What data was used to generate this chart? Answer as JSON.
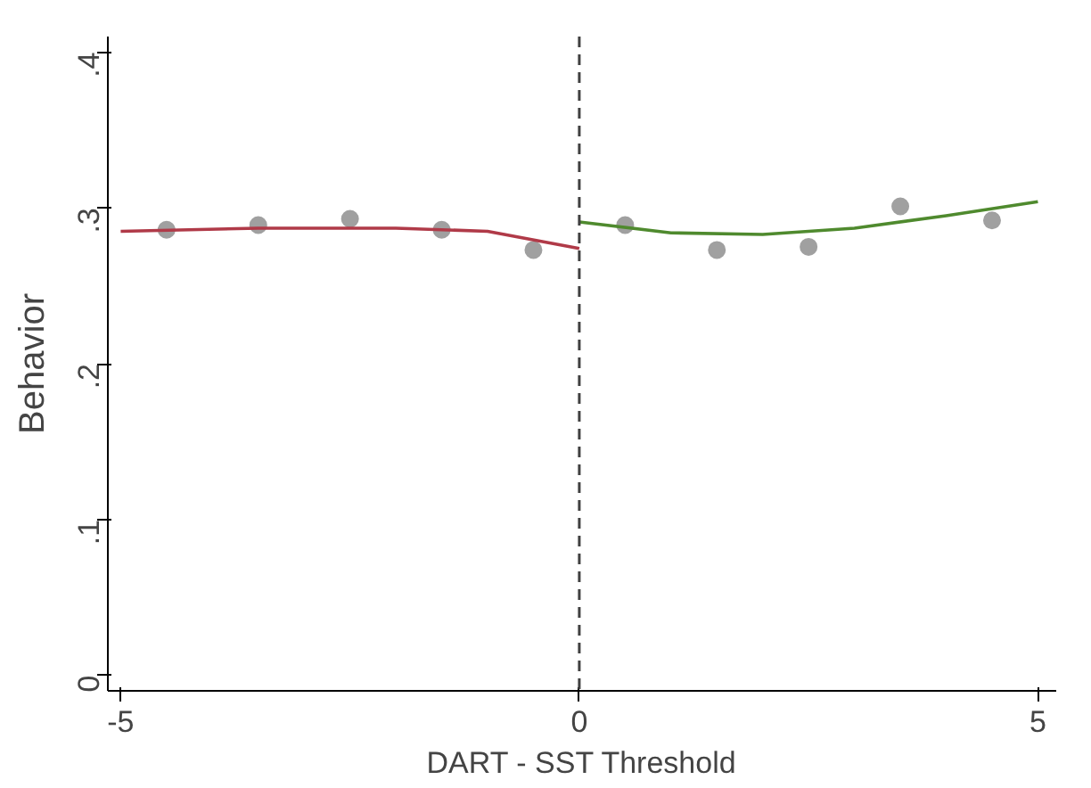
{
  "chart_data": {
    "type": "scatter",
    "xlabel": "DART - SST Threshold",
    "ylabel": "Behavior",
    "xlim": [
      -5.14,
      5.2
    ],
    "xticks": [
      -5,
      0,
      5
    ],
    "ylim": [
      -0.01,
      0.41
    ],
    "yticks": [
      {
        "value": 0,
        "label": "0"
      },
      {
        "value": 0.1,
        "label": ".1"
      },
      {
        "value": 0.2,
        "label": ".2"
      },
      {
        "value": 0.3,
        "label": ".3"
      },
      {
        "value": 0.4,
        "label": ".4"
      }
    ],
    "grid": false,
    "ref_lines": [
      {
        "axis": "x",
        "value": 0,
        "line_style": "dashed",
        "color": "#404040"
      }
    ],
    "series": [
      {
        "marker": "circle",
        "color": "#a0a0a0",
        "x": [
          -4.5,
          -3.5,
          -2.5,
          -1.5,
          -0.5,
          0.5,
          1.5,
          2.5,
          3.5,
          4.5
        ],
        "values": [
          0.286,
          0.289,
          0.293,
          0.286,
          0.273,
          0.289,
          0.273,
          0.275,
          0.301,
          0.292
        ]
      },
      {
        "type": "line",
        "color": "#b03a48",
        "x": [
          -5,
          -3.5,
          -2,
          -1,
          0
        ],
        "values": [
          0.285,
          0.287,
          0.287,
          0.285,
          0.274
        ]
      },
      {
        "type": "line",
        "color": "#4f8a2e",
        "x": [
          0,
          1,
          2,
          3,
          4,
          5
        ],
        "values": [
          0.291,
          0.284,
          0.283,
          0.287,
          0.295,
          0.304
        ]
      }
    ]
  }
}
